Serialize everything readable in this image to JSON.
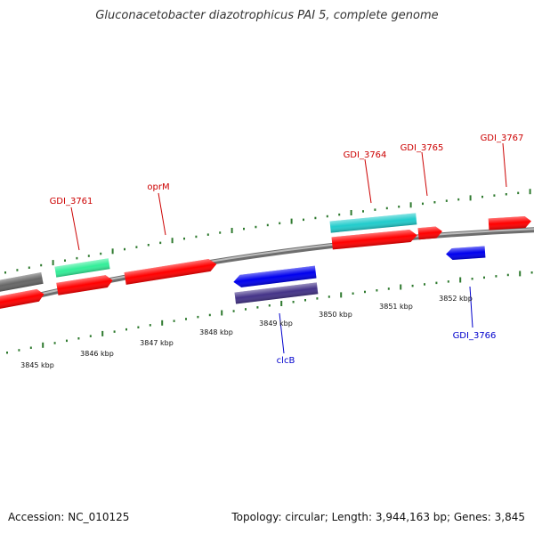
{
  "title": "Gluconacetobacter diazotrophicus PAI 5, complete genome",
  "footer": {
    "accession": "Accession: NC_010125",
    "summary": "Topology: circular; Length: 3,944,163 bp; Genes: 3,845"
  },
  "colors": {
    "backbone": "#888888",
    "tick": "#2f7a2f",
    "label_top": "#cc0000",
    "label_bottom": "#0000cc",
    "gene_red": "#ff0000",
    "gene_blue": "#0000ee",
    "gene_cyan": "#22cccc",
    "gene_mint": "#33ee99",
    "gene_gray": "#666666",
    "gene_indigo": "#443388"
  },
  "scale_labels": [
    "3845 kbp",
    "3846 kbp",
    "3847 kbp",
    "3848 kbp",
    "3849 kbp",
    "3850 kbp",
    "3851 kbp",
    "3852 kbp"
  ],
  "gene_labels": {
    "top": [
      "GDI_3761",
      "oprM",
      "GDI_3764",
      "GDI_3765",
      "GDI_3767"
    ],
    "bottom": [
      "clcB",
      "GDI_3766"
    ]
  }
}
